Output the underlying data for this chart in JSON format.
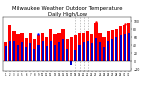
{
  "title": "Milwaukee Weather Outdoor Temperature\nDaily High/Low",
  "title_fontsize": 3.8,
  "background_color": "#ffffff",
  "high_color": "#ff0000",
  "low_color": "#0000cc",
  "dashed_line_color": "#aaaaaa",
  "ylim": [
    -25,
    110
  ],
  "yticks": [
    -20,
    0,
    20,
    40,
    60,
    80,
    100
  ],
  "num_days": 31,
  "highs": [
    48,
    90,
    75,
    68,
    72,
    58,
    70,
    55,
    65,
    72,
    62,
    80,
    68,
    72,
    80,
    55,
    60,
    65,
    70,
    72,
    75,
    68,
    95,
    72,
    60,
    75,
    78,
    82,
    88,
    90,
    95
  ],
  "lows": [
    38,
    52,
    50,
    42,
    48,
    35,
    45,
    32,
    42,
    50,
    38,
    52,
    42,
    48,
    55,
    30,
    -10,
    28,
    42,
    48,
    52,
    45,
    58,
    48,
    35,
    50,
    55,
    60,
    65,
    68,
    72
  ],
  "bar_width": 0.8,
  "inner_bar_width": 0.5,
  "dashed_cols": [
    17,
    18,
    19,
    20
  ],
  "dot_high_days": [
    22,
    29
  ],
  "dot_low_days": [
    8
  ]
}
